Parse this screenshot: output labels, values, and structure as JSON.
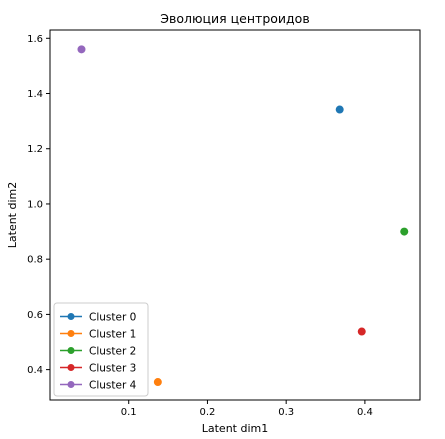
{
  "chart_data": {
    "type": "scatter",
    "title": "Эволюция центроидов",
    "xlabel": "Latent dim1",
    "ylabel": "Latent dim2",
    "xlim": [
      0.0,
      0.47
    ],
    "ylim": [
      0.29,
      1.63
    ],
    "xticks": [
      "0.1",
      "0.2",
      "0.3",
      "0.4"
    ],
    "xtick_values": [
      0.1,
      0.2,
      0.3,
      0.4
    ],
    "yticks": [
      "0.4",
      "0.6",
      "0.8",
      "1.0",
      "1.2",
      "1.4",
      "1.6"
    ],
    "ytick_values": [
      0.4,
      0.6,
      0.8,
      1.0,
      1.2,
      1.4,
      1.6
    ],
    "grid": false,
    "legend_position": "lower-left",
    "series": [
      {
        "name": "Cluster 0",
        "color": "#1f77b4",
        "points": [
          [
            0.368,
            1.342
          ]
        ]
      },
      {
        "name": "Cluster 1",
        "color": "#ff7f0e",
        "points": [
          [
            0.137,
            0.355
          ]
        ]
      },
      {
        "name": "Cluster 2",
        "color": "#2ca02c",
        "points": [
          [
            0.45,
            0.9
          ]
        ]
      },
      {
        "name": "Cluster 3",
        "color": "#d62728",
        "points": [
          [
            0.396,
            0.538
          ]
        ]
      },
      {
        "name": "Cluster 4",
        "color": "#9467bd",
        "points": [
          [
            0.04,
            1.56
          ]
        ]
      }
    ]
  }
}
